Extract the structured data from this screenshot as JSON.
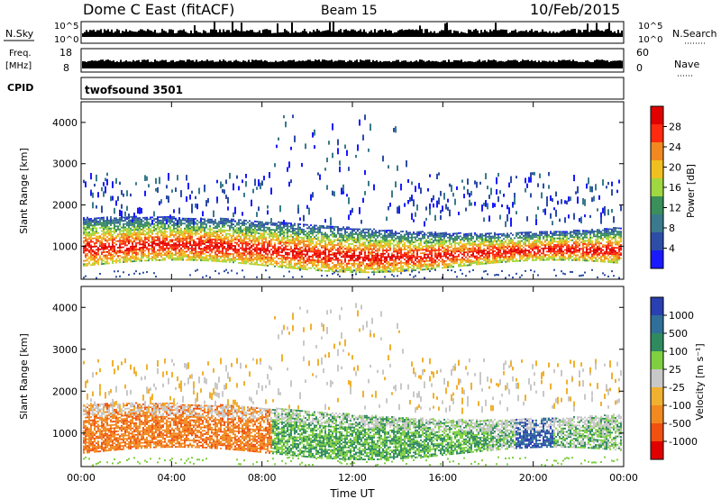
{
  "header": {
    "station": "Dome C East (fitACF)",
    "beam": "Beam 15",
    "date": "10/Feb/2015"
  },
  "top_panels": {
    "nsky_label": "N.Sky",
    "nsky_ticks": [
      "10^5",
      "10^0"
    ],
    "nsearch_label": "N.Search",
    "freq_label_1": "Freq.",
    "freq_label_2": "[MHz]",
    "freq_ticks": [
      "18",
      "8"
    ],
    "nave_label": "Nave",
    "nave_ticks": [
      "60",
      "0"
    ],
    "cpid_label": "CPID",
    "cpid_value": "twofsound 3501"
  },
  "colors": {
    "power_scale": [
      "#1a1aff",
      "#2d4da6",
      "#3a7a8c",
      "#3a8f5a",
      "#9fd840",
      "#f0c020",
      "#f08a20",
      "#ff2a10",
      "#e00000"
    ],
    "velocity_scale": [
      "#2a3fb0",
      "#2f6f9a",
      "#2f8a60",
      "#7fd040",
      "#c8c8c8",
      "#f0b030",
      "#f08a20",
      "#f05010",
      "#e00000"
    ]
  },
  "chart_data": [
    {
      "type": "heatmap",
      "name": "power",
      "ylabel": "Slant Range [km]",
      "yticks": [
        "1000",
        "2000",
        "3000",
        "4000"
      ],
      "ylim": [
        200,
        4500
      ],
      "xticks": [
        "00:00",
        "04:00",
        "08:00",
        "12:00",
        "16:00",
        "20:00",
        "00:00"
      ],
      "colorbar_label": "Power [dB]",
      "colorbar_ticks": [
        "4",
        "8",
        "12",
        "16",
        "20",
        "24",
        "28"
      ],
      "zlim": [
        0,
        30
      ]
    },
    {
      "type": "heatmap",
      "name": "velocity",
      "ylabel": "Slant Range [km]",
      "yticks": [
        "1000",
        "2000",
        "3000",
        "4000"
      ],
      "ylim": [
        200,
        4500
      ],
      "xticks": [
        "00:00",
        "04:00",
        "08:00",
        "12:00",
        "16:00",
        "20:00",
        "00:00"
      ],
      "xlabel": "Time UT",
      "colorbar_label": "Velocity [m s⁻¹]",
      "colorbar_ticks": [
        "1000",
        "500",
        "100",
        "25",
        "-25",
        "-100",
        "-500",
        "-1000"
      ]
    }
  ]
}
